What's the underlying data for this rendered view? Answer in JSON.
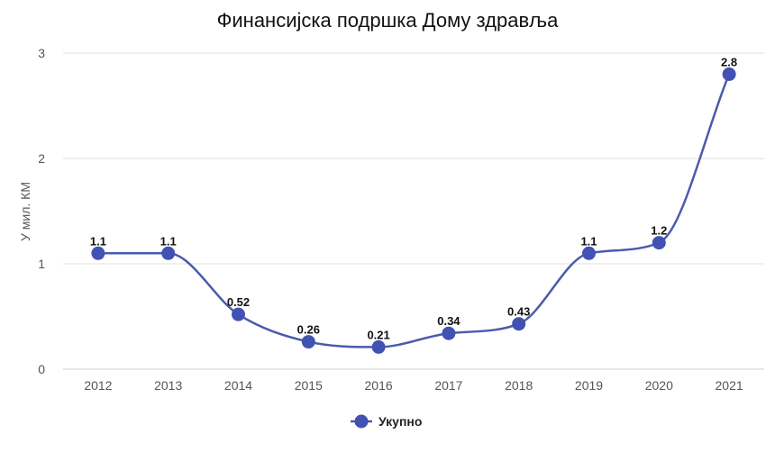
{
  "chart_data": {
    "type": "line",
    "title": "Финансијска подршка Дому здравља",
    "ylabel": "У мил. КМ",
    "xlabel": "",
    "categories": [
      "2012",
      "2013",
      "2014",
      "2015",
      "2016",
      "2017",
      "2018",
      "2019",
      "2020",
      "2021"
    ],
    "series": [
      {
        "name": "Укупно",
        "values": [
          1.1,
          1.1,
          0.52,
          0.26,
          0.21,
          0.34,
          0.43,
          1.1,
          1.2,
          2.8
        ],
        "labels": [
          "1.1",
          "1.1",
          "0.52",
          "0.26",
          "0.21",
          "0.34",
          "0.43",
          "1.1",
          "1.2",
          "2.8"
        ]
      }
    ],
    "ylim": [
      0,
      3
    ],
    "yticks": [
      "0",
      "1",
      "2",
      "3"
    ],
    "grid": true,
    "legend": "bottom",
    "colors": {
      "line": "#4a5bab",
      "marker": "#4152b3",
      "grid": "#e2e2e2",
      "axis": "#cccccc"
    }
  }
}
